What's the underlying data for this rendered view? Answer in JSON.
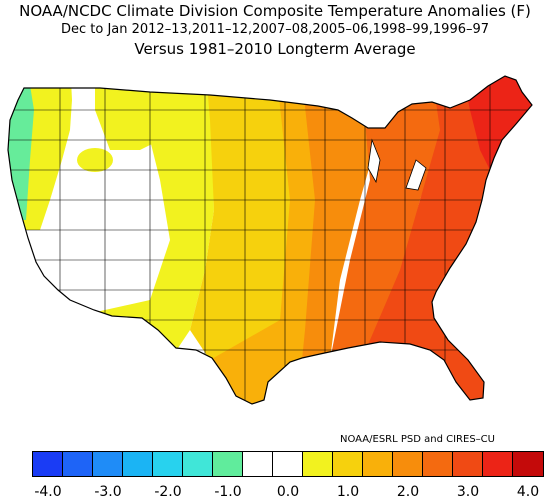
{
  "title": {
    "line1": "NOAA/NCDC Climate Division Composite Temperature Anomalies (F)",
    "line2": "Dec to Jan  2012–13,2011–12,2007–08,2005–06,1998–99,1996–97",
    "line3": "Versus 1981–2010 Longterm Average"
  },
  "credit": "NOAA/ESRL PSD and CIRES–CU",
  "legend": {
    "colors": [
      "#1a3cf5",
      "#1e64f7",
      "#1f8cf7",
      "#1bb4f4",
      "#28d2ee",
      "#40e6d8",
      "#60ec9c",
      "#ffffff",
      "#ffffff",
      "#f2f21f",
      "#f6d10d",
      "#f9b00a",
      "#f78d0c",
      "#f46a10",
      "#f04a14",
      "#ec2417",
      "#c40a0a"
    ],
    "tick_labels": [
      "-4.0",
      "-3.0",
      "-2.0",
      "-1.0",
      "0.0",
      "1.0",
      "2.0",
      "3.0",
      "4.0"
    ]
  },
  "regions": [
    {
      "name": "pacific-northwest-coast",
      "anomaly": -0.8,
      "color": "#66ec9a"
    },
    {
      "name": "west-interior",
      "anomaly": 0.0,
      "color": "#ffffff"
    },
    {
      "name": "northern-rockies",
      "anomaly": 0.9,
      "color": "#f2f21f"
    },
    {
      "name": "northern-plains",
      "anomaly": 1.3,
      "color": "#f6d10d"
    },
    {
      "name": "central-plains",
      "anomaly": 1.6,
      "color": "#f9b00a"
    },
    {
      "name": "upper-midwest",
      "anomaly": 2.2,
      "color": "#f78d0c"
    },
    {
      "name": "southern-plains",
      "anomaly": 1.7,
      "color": "#f9b00a"
    },
    {
      "name": "midwest",
      "anomaly": 2.6,
      "color": "#f46a10"
    },
    {
      "name": "southeast",
      "anomaly": 3.1,
      "color": "#f04a14"
    },
    {
      "name": "northeast",
      "anomaly": 3.6,
      "color": "#ec2417"
    }
  ]
}
